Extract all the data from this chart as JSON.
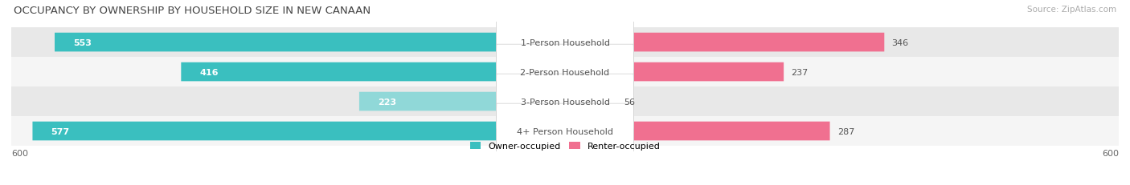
{
  "title": "OCCUPANCY BY OWNERSHIP BY HOUSEHOLD SIZE IN NEW CANAAN",
  "source": "Source: ZipAtlas.com",
  "categories": [
    "1-Person Household",
    "2-Person Household",
    "3-Person Household",
    "4+ Person Household"
  ],
  "owner_values": [
    553,
    416,
    223,
    577
  ],
  "renter_values": [
    346,
    237,
    56,
    287
  ],
  "owner_colors": [
    "#3abfbf",
    "#3abfbf",
    "#90d8d8",
    "#3abfbf"
  ],
  "renter_colors": [
    "#f07090",
    "#f07090",
    "#f8b8cc",
    "#f07090"
  ],
  "owner_color": "#3abfbf",
  "renter_color": "#f07090",
  "row_bg_colors": [
    "#e8e8e8",
    "#f5f5f5",
    "#e8e8e8",
    "#f5f5f5"
  ],
  "axis_max": 600,
  "title_fontsize": 9.5,
  "label_fontsize": 8,
  "tick_fontsize": 8,
  "source_fontsize": 7.5
}
